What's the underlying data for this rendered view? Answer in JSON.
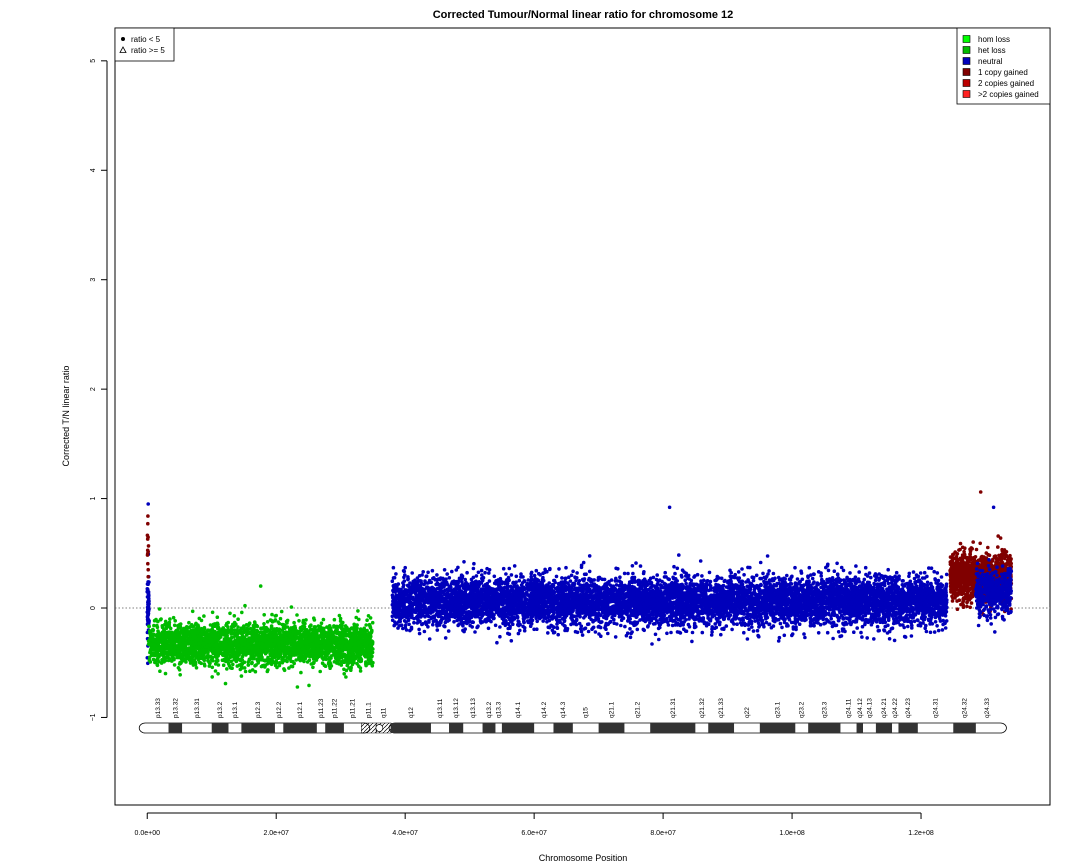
{
  "chart_data": {
    "type": "scatter",
    "title": "Corrected Tumour/Normal linear ratio for chromosome  12",
    "xlabel": "Chromosome Position",
    "ylabel": "Corrected T/N linear ratio",
    "xlim": [
      -5000000,
      140000000
    ],
    "ylim": [
      -1.8,
      5.3
    ],
    "x_ticks": [
      0,
      20000000,
      40000000,
      60000000,
      80000000,
      100000000,
      120000000
    ],
    "x_tick_labels": [
      "0.0e+00",
      "2.0e+07",
      "4.0e+07",
      "6.0e+07",
      "8.0e+07",
      "1.0e+08",
      "1.2e+08"
    ],
    "y_ticks": [
      -1,
      0,
      1,
      2,
      3,
      4,
      5
    ],
    "y_tick_labels": [
      "−1",
      "0",
      "1",
      "2",
      "3",
      "4",
      "5"
    ],
    "reference_line_y": 0,
    "shape_legend": {
      "position": "top-left",
      "items": [
        {
          "symbol": "dot",
          "label": "ratio < 5"
        },
        {
          "symbol": "triangle",
          "label": "ratio >= 5"
        }
      ]
    },
    "legend": {
      "position": "top-right",
      "items": [
        {
          "label": "hom loss",
          "color": "#00ff00"
        },
        {
          "label": "het loss",
          "color": "#00bb00"
        },
        {
          "label": "neutral",
          "color": "#0000bb"
        },
        {
          "label": "1 copy gained",
          "color": "#800000"
        },
        {
          "label": "2 copies gained",
          "color": "#bb0000"
        },
        {
          "label": ">2 copies gained",
          "color": "#ff2222"
        }
      ]
    },
    "segments": [
      {
        "x_start": 0,
        "x_end": 300000,
        "state": "neutral",
        "color": "#0000bb",
        "median": 0.0,
        "spread": 0.3,
        "density": 60,
        "x_max_point": 0.95
      },
      {
        "x_start": 0,
        "x_end": 200000,
        "state": "1 copy gained",
        "color": "#800000",
        "median": 0.55,
        "spread": 0.3,
        "density": 12,
        "x_max_point": 0.84
      },
      {
        "x_start": 200000,
        "x_end": 35000000,
        "state": "het loss",
        "color": "#00bb00",
        "median": -0.33,
        "spread": 0.17,
        "density": 3200,
        "x_max_point": 0.2
      },
      {
        "x_start": 38000000,
        "x_end": 124000000,
        "state": "neutral",
        "color": "#0000bb",
        "median": 0.06,
        "spread": 0.2,
        "density": 8200,
        "x_max_point": 0.92
      },
      {
        "x_start": 124500000,
        "x_end": 134000000,
        "state": "1 copy gained",
        "color": "#800000",
        "median": 0.28,
        "spread": 0.2,
        "density": 1300,
        "x_max_point": 1.06
      },
      {
        "x_start": 128500000,
        "x_end": 134000000,
        "state": "neutral",
        "color": "#0000bb",
        "median": 0.15,
        "spread": 0.18,
        "density": 450,
        "x_max_point": 0.92
      }
    ],
    "ideogram": {
      "chromosome": "12",
      "centromere": [
        34500000,
        37500000
      ],
      "bands": [
        {
          "name": "p13.33",
          "start": 0,
          "end": 3300000,
          "stain": "gneg"
        },
        {
          "name": "p13.32",
          "start": 3300000,
          "end": 5400000,
          "stain": "gpos"
        },
        {
          "name": "p13.31",
          "start": 5400000,
          "end": 10000000,
          "stain": "gneg"
        },
        {
          "name": "p13.2",
          "start": 10000000,
          "end": 12600000,
          "stain": "gpos"
        },
        {
          "name": "p13.1",
          "start": 12600000,
          "end": 14600000,
          "stain": "gneg"
        },
        {
          "name": "p12.3",
          "start": 14600000,
          "end": 19800000,
          "stain": "gpos"
        },
        {
          "name": "p12.2",
          "start": 19800000,
          "end": 21100000,
          "stain": "gneg"
        },
        {
          "name": "p12.1",
          "start": 21100000,
          "end": 26300000,
          "stain": "gpos"
        },
        {
          "name": "p11.23",
          "start": 26300000,
          "end": 27600000,
          "stain": "gneg"
        },
        {
          "name": "p11.22",
          "start": 27600000,
          "end": 30500000,
          "stain": "gpos"
        },
        {
          "name": "p11.21",
          "start": 30500000,
          "end": 33200000,
          "stain": "gneg"
        },
        {
          "name": "p11.1",
          "start": 33200000,
          "end": 35500000,
          "stain": "acen"
        },
        {
          "name": "q11",
          "start": 35500000,
          "end": 37800000,
          "stain": "acen"
        },
        {
          "name": "q12",
          "start": 37800000,
          "end": 44000000,
          "stain": "gpos"
        },
        {
          "name": "q13.11",
          "start": 44000000,
          "end": 46800000,
          "stain": "gneg"
        },
        {
          "name": "q13.12",
          "start": 46800000,
          "end": 49000000,
          "stain": "gpos"
        },
        {
          "name": "q13.13",
          "start": 49000000,
          "end": 52000000,
          "stain": "gneg"
        },
        {
          "name": "q13.2",
          "start": 52000000,
          "end": 54000000,
          "stain": "gpos"
        },
        {
          "name": "q13.3",
          "start": 54000000,
          "end": 55000000,
          "stain": "gneg"
        },
        {
          "name": "q14.1",
          "start": 55000000,
          "end": 60000000,
          "stain": "gpos"
        },
        {
          "name": "q14.2",
          "start": 60000000,
          "end": 63000000,
          "stain": "gneg"
        },
        {
          "name": "q14.3",
          "start": 63000000,
          "end": 66000000,
          "stain": "gpos"
        },
        {
          "name": "q15",
          "start": 66000000,
          "end": 70000000,
          "stain": "gneg"
        },
        {
          "name": "q21.1",
          "start": 70000000,
          "end": 74000000,
          "stain": "gpos"
        },
        {
          "name": "q21.2",
          "start": 74000000,
          "end": 78000000,
          "stain": "gneg"
        },
        {
          "name": "q21.31",
          "start": 78000000,
          "end": 85000000,
          "stain": "gpos"
        },
        {
          "name": "q21.32",
          "start": 85000000,
          "end": 87000000,
          "stain": "gneg"
        },
        {
          "name": "q21.33",
          "start": 87000000,
          "end": 91000000,
          "stain": "gpos"
        },
        {
          "name": "q22",
          "start": 91000000,
          "end": 95000000,
          "stain": "gneg"
        },
        {
          "name": "q23.1",
          "start": 95000000,
          "end": 100500000,
          "stain": "gpos"
        },
        {
          "name": "q23.2",
          "start": 100500000,
          "end": 102500000,
          "stain": "gneg"
        },
        {
          "name": "q23.3",
          "start": 102500000,
          "end": 107500000,
          "stain": "gpos"
        },
        {
          "name": "q24.11",
          "start": 107500000,
          "end": 110000000,
          "stain": "gneg"
        },
        {
          "name": "q24.12",
          "start": 110000000,
          "end": 111000000,
          "stain": "gpos"
        },
        {
          "name": "q24.13",
          "start": 111000000,
          "end": 113000000,
          "stain": "gneg"
        },
        {
          "name": "q24.21",
          "start": 113000000,
          "end": 115500000,
          "stain": "gpos"
        },
        {
          "name": "q24.22",
          "start": 115500000,
          "end": 116500000,
          "stain": "gneg"
        },
        {
          "name": "q24.23",
          "start": 116500000,
          "end": 119500000,
          "stain": "gpos"
        },
        {
          "name": "q24.31",
          "start": 119500000,
          "end": 125000000,
          "stain": "gneg"
        },
        {
          "name": "q24.32",
          "start": 125000000,
          "end": 128500000,
          "stain": "gpos"
        },
        {
          "name": "q24.33",
          "start": 128500000,
          "end": 132000000,
          "stain": "gneg"
        }
      ]
    }
  }
}
